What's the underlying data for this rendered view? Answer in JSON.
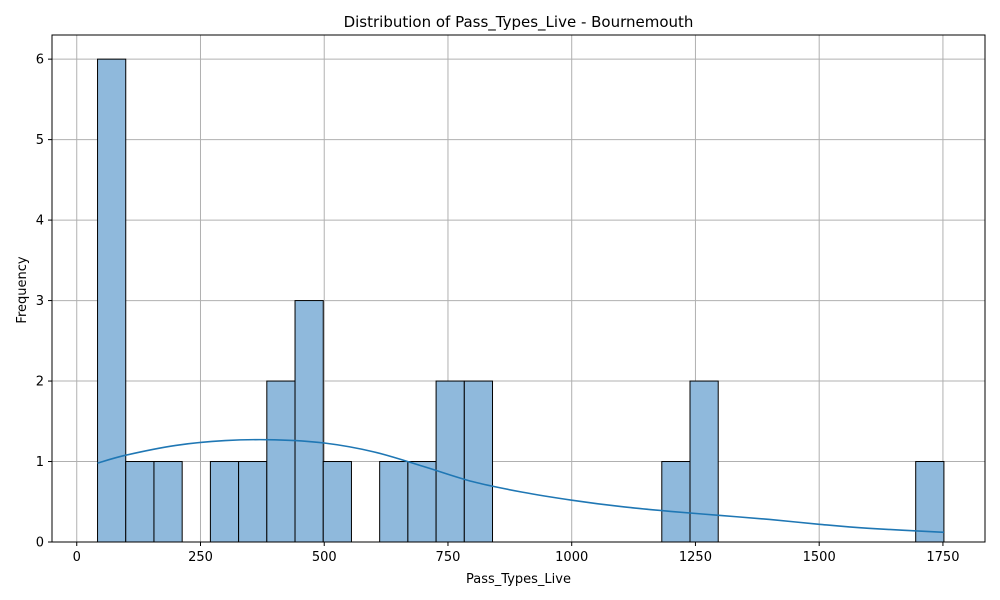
{
  "chart_data": {
    "type": "bar",
    "title": "Distribution of Pass_Types_Live - Bournemouth",
    "xlabel": "Pass_Types_Live",
    "ylabel": "Frequency",
    "xlim": [
      -50,
      1835
    ],
    "ylim": [
      0,
      6.3
    ],
    "xticks": [
      0,
      250,
      500,
      750,
      1000,
      1250,
      1500,
      1750
    ],
    "yticks": [
      0,
      1,
      2,
      3,
      4,
      5,
      6
    ],
    "grid": true,
    "bin_start": 42,
    "bin_width": 57,
    "bins": [
      {
        "x0": 42,
        "x1": 99,
        "count": 6
      },
      {
        "x0": 99,
        "x1": 156,
        "count": 1
      },
      {
        "x0": 156,
        "x1": 213,
        "count": 1
      },
      {
        "x0": 213,
        "x1": 270,
        "count": 0
      },
      {
        "x0": 270,
        "x1": 327,
        "count": 1
      },
      {
        "x0": 327,
        "x1": 384,
        "count": 1
      },
      {
        "x0": 384,
        "x1": 441,
        "count": 2
      },
      {
        "x0": 441,
        "x1": 498,
        "count": 3
      },
      {
        "x0": 498,
        "x1": 555,
        "count": 1
      },
      {
        "x0": 555,
        "x1": 612,
        "count": 0
      },
      {
        "x0": 612,
        "x1": 669,
        "count": 1
      },
      {
        "x0": 669,
        "x1": 726,
        "count": 1
      },
      {
        "x0": 726,
        "x1": 783,
        "count": 2
      },
      {
        "x0": 783,
        "x1": 840,
        "count": 2
      },
      {
        "x0": 840,
        "x1": 897,
        "count": 0
      },
      {
        "x0": 897,
        "x1": 954,
        "count": 0
      },
      {
        "x0": 954,
        "x1": 1011,
        "count": 0
      },
      {
        "x0": 1011,
        "x1": 1068,
        "count": 0
      },
      {
        "x0": 1068,
        "x1": 1125,
        "count": 0
      },
      {
        "x0": 1125,
        "x1": 1182,
        "count": 0
      },
      {
        "x0": 1182,
        "x1": 1239,
        "count": 1
      },
      {
        "x0": 1239,
        "x1": 1296,
        "count": 2
      },
      {
        "x0": 1296,
        "x1": 1353,
        "count": 0
      },
      {
        "x0": 1353,
        "x1": 1410,
        "count": 0
      },
      {
        "x0": 1410,
        "x1": 1467,
        "count": 0
      },
      {
        "x0": 1467,
        "x1": 1524,
        "count": 0
      },
      {
        "x0": 1524,
        "x1": 1581,
        "count": 0
      },
      {
        "x0": 1581,
        "x1": 1638,
        "count": 0
      },
      {
        "x0": 1638,
        "x1": 1695,
        "count": 0
      },
      {
        "x0": 1695,
        "x1": 1752,
        "count": 1
      }
    ],
    "kde": {
      "x": [
        42,
        100,
        200,
        300,
        400,
        500,
        600,
        700,
        800,
        900,
        1000,
        1100,
        1200,
        1300,
        1400,
        1500,
        1600,
        1752
      ],
      "y": [
        0.98,
        1.08,
        1.2,
        1.26,
        1.27,
        1.23,
        1.12,
        0.94,
        0.75,
        0.62,
        0.52,
        0.44,
        0.38,
        0.33,
        0.28,
        0.22,
        0.17,
        0.12
      ]
    },
    "colors": {
      "bar_fill": "#8fb9dc",
      "bar_edge": "#000000",
      "kde_line": "#1f77b4",
      "grid": "#b0b0b0"
    }
  }
}
